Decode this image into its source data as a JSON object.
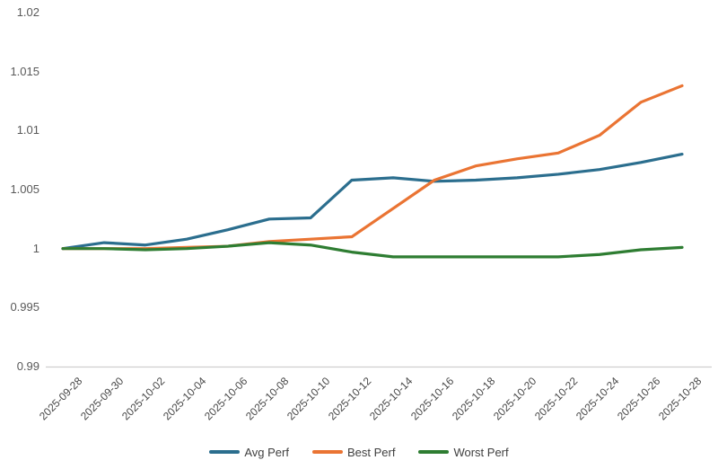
{
  "chart_data": {
    "type": "line",
    "title": "",
    "xlabel": "",
    "ylabel": "",
    "categories": [
      "2025-09-28",
      "2025-09-30",
      "2025-10-02",
      "2025-10-04",
      "2025-10-06",
      "2025-10-08",
      "2025-10-10",
      "2025-10-12",
      "2025-10-14",
      "2025-10-16",
      "2025-10-18",
      "2025-10-20",
      "2025-10-22",
      "2025-10-24",
      "2025-10-26",
      "2025-10-28"
    ],
    "series": [
      {
        "name": "Avg Perf",
        "color": "#2b6e8e",
        "values": [
          1.0,
          1.0005,
          1.0003,
          1.0008,
          1.0016,
          1.0025,
          1.0026,
          1.0058,
          1.006,
          1.0057,
          1.0058,
          1.006,
          1.0063,
          1.0067,
          1.0073,
          1.008
        ]
      },
      {
        "name": "Best Perf",
        "color": "#ea7433",
        "values": [
          1.0,
          1.0,
          1.0,
          1.0001,
          1.0002,
          1.0006,
          1.0008,
          1.001,
          1.0034,
          1.0058,
          1.007,
          1.0076,
          1.0081,
          1.0096,
          1.0124,
          1.0138
        ]
      },
      {
        "name": "Worst Perf",
        "color": "#2e7d32",
        "values": [
          1.0,
          1.0,
          0.9999,
          1.0,
          1.0002,
          1.0005,
          1.0003,
          0.9997,
          0.9993,
          0.9993,
          0.9993,
          0.9993,
          0.9993,
          0.9995,
          0.9999,
          1.0001
        ]
      }
    ],
    "y_ticks": [
      {
        "value": 0.99,
        "label": "0.99"
      },
      {
        "value": 0.995,
        "label": "0.995"
      },
      {
        "value": 1,
        "label": "1"
      },
      {
        "value": 1.005,
        "label": "1.005"
      },
      {
        "value": 1.01,
        "label": "1.01"
      },
      {
        "value": 1.015,
        "label": "1.015"
      },
      {
        "value": 1.02,
        "label": "1.02"
      }
    ],
    "ylim": [
      0.99,
      1.02
    ],
    "grid": false,
    "legend_position": "bottom",
    "style": {
      "axis_line_color": "#d0cece",
      "y_tick_text_color": "#595959",
      "x_tick_text_color": "#474747",
      "legend_text_color": "#404040",
      "background": "#ffffff"
    }
  }
}
